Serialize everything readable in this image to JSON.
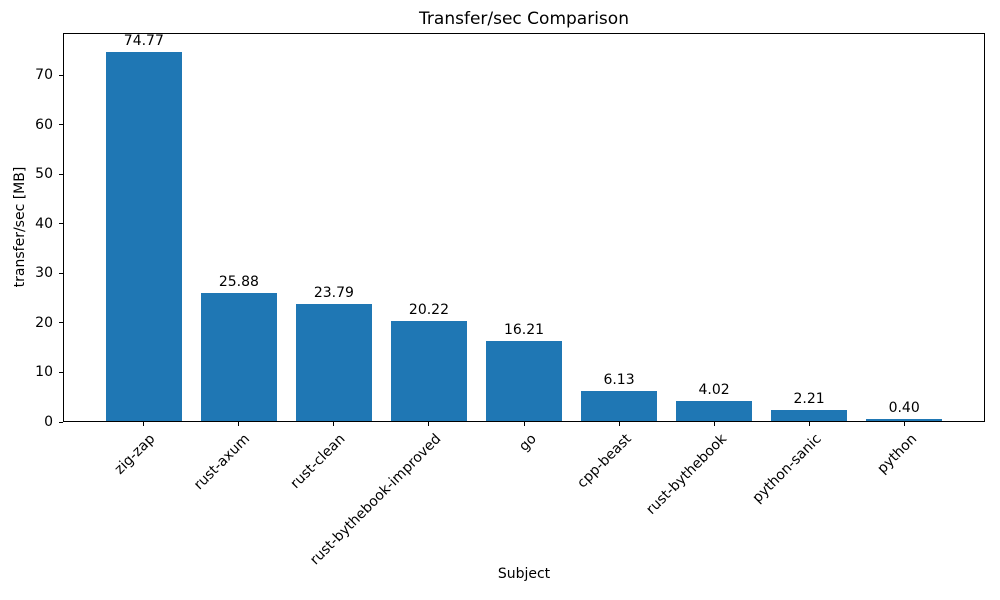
{
  "chart_data": {
    "type": "bar",
    "title": "Transfer/sec Comparison",
    "xlabel": "Subject",
    "ylabel": "transfer/sec [MB]",
    "categories": [
      "zig-zap",
      "rust-axum",
      "rust-clean",
      "rust-bythebook-improved",
      "go",
      "cpp-beast",
      "rust-bythebook",
      "python-sanic",
      "python"
    ],
    "values": [
      74.77,
      25.88,
      23.79,
      20.22,
      16.21,
      6.13,
      4.02,
      2.21,
      0.4
    ],
    "value_labels": [
      "74.77",
      "25.88",
      "23.79",
      "20.22",
      "16.21",
      "6.13",
      "4.02",
      "2.21",
      "0.40"
    ],
    "yticks": [
      0,
      10,
      20,
      30,
      40,
      50,
      60,
      70
    ],
    "ylim": [
      0,
      78.51
    ],
    "bar_color": "#1f77b4",
    "grid": false,
    "legend_position": "none",
    "background_color": "#ffffff",
    "text_color": "#000000"
  }
}
